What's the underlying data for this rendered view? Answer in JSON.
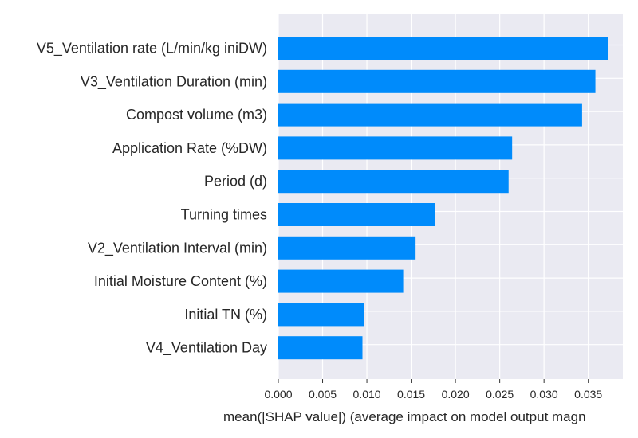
{
  "chart_data": {
    "type": "bar",
    "orientation": "horizontal",
    "categories": [
      "V5_Ventilation rate (L/min/kg iniDW)",
      "V3_Ventilation Duration (min)",
      "Compost volume (m3)",
      "Application Rate (%DW)",
      "Period (d)",
      "Turning times",
      "V2_Ventilation Interval (min)",
      "Initial Moisture Content (%)",
      "Initial TN (%)",
      "V4_Ventilation Day"
    ],
    "values": [
      0.0372,
      0.0358,
      0.0343,
      0.0264,
      0.026,
      0.0177,
      0.0155,
      0.0141,
      0.0097,
      0.0095
    ],
    "xlabel": "mean(|SHAP value|) (average impact on model output magn",
    "ylabel": "",
    "title": "",
    "xlim": [
      0,
      0.0389
    ],
    "xticks": [
      "0.000",
      "0.005",
      "0.010",
      "0.015",
      "0.020",
      "0.025",
      "0.030",
      "0.035"
    ],
    "grid": true,
    "bar_color": "#008bfb",
    "background_color": "#eaeaf2"
  }
}
